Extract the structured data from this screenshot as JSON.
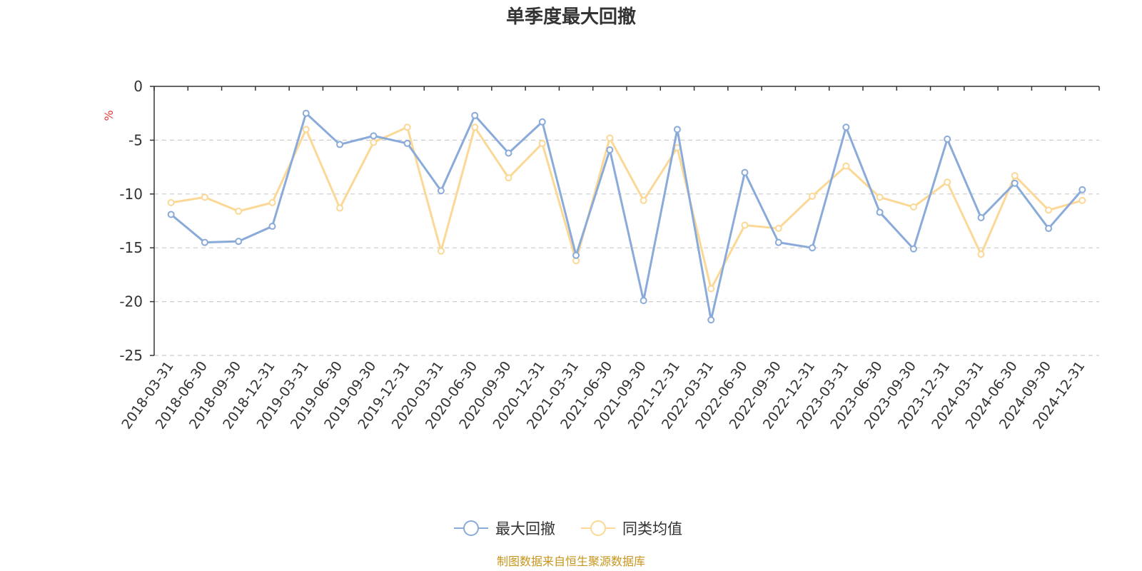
{
  "chart_data": {
    "type": "line",
    "title": "单季度最大回撤",
    "ylabel": "%",
    "ylim": [
      -25,
      0
    ],
    "yticks": [
      0,
      -5,
      -10,
      -15,
      -20,
      -25
    ],
    "grid": true,
    "legend_position": "bottom-center",
    "categories": [
      "2018-03-31",
      "2018-06-30",
      "2018-09-30",
      "2018-12-31",
      "2019-03-31",
      "2019-06-30",
      "2019-09-30",
      "2019-12-31",
      "2020-03-31",
      "2020-06-30",
      "2020-09-30",
      "2020-12-31",
      "2021-03-31",
      "2021-06-30",
      "2021-09-30",
      "2021-12-31",
      "2022-03-31",
      "2022-06-30",
      "2022-09-30",
      "2022-12-31",
      "2023-03-31",
      "2023-06-30",
      "2023-09-30",
      "2023-12-31",
      "2024-03-31",
      "2024-06-30",
      "2024-09-30",
      "2024-12-31"
    ],
    "series": [
      {
        "name": "最大回撤",
        "color": "#8aabd9",
        "values": [
          -11.9,
          -14.5,
          -14.4,
          -13.0,
          -2.5,
          -5.4,
          -4.6,
          -5.3,
          -9.7,
          -2.7,
          -6.2,
          -3.3,
          -15.7,
          -5.9,
          -19.9,
          -4.0,
          -21.7,
          -8.0,
          -14.5,
          -15.0,
          -3.8,
          -11.7,
          -15.1,
          -4.9,
          -12.2,
          -9.0,
          -13.2,
          -9.6
        ]
      },
      {
        "name": "同类均值",
        "color": "#fbd896",
        "values": [
          -10.8,
          -10.3,
          -11.6,
          -10.8,
          -4.0,
          -11.3,
          -5.2,
          -3.8,
          -15.3,
          -3.8,
          -8.5,
          -5.3,
          -16.2,
          -4.8,
          -10.6,
          -5.7,
          -18.8,
          -12.9,
          -13.2,
          -10.2,
          -7.4,
          -10.3,
          -11.2,
          -8.9,
          -15.6,
          -8.3,
          -11.5,
          -10.6
        ]
      }
    ],
    "source": "制图数据来自恒生聚源数据库"
  }
}
